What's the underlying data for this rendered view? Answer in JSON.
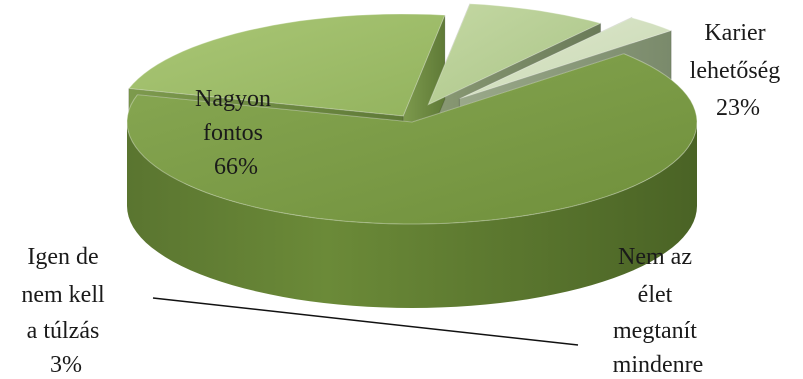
{
  "chart_data": {
    "type": "pie",
    "style": "3d-exploded",
    "title": "",
    "slices": [
      {
        "label_lines": [
          "Nagyon",
          "fontos",
          "66%"
        ],
        "label": "Nagyon fontos",
        "value": 66,
        "value_text": "66%",
        "color": "#7a9a45"
      },
      {
        "label_lines": [
          "Karier",
          "lehetőség",
          "23%"
        ],
        "label": "Karier lehetőség",
        "value": 23,
        "value_text": "23%",
        "color": "#9fbd6a"
      },
      {
        "label_lines": [
          "Nem az",
          "élet",
          "megtanít",
          "mindenre"
        ],
        "label": "Nem az élet megtanít mindenre",
        "value": 8,
        "value_text": "",
        "color": "#b8cf94"
      },
      {
        "label_lines": [
          "Igen de",
          "nem kell",
          "a túlzás",
          "3%"
        ],
        "label": "Igen de nem kell a túlzás",
        "value": 3,
        "value_text": "3%",
        "color": "#d3dfc2"
      }
    ]
  }
}
